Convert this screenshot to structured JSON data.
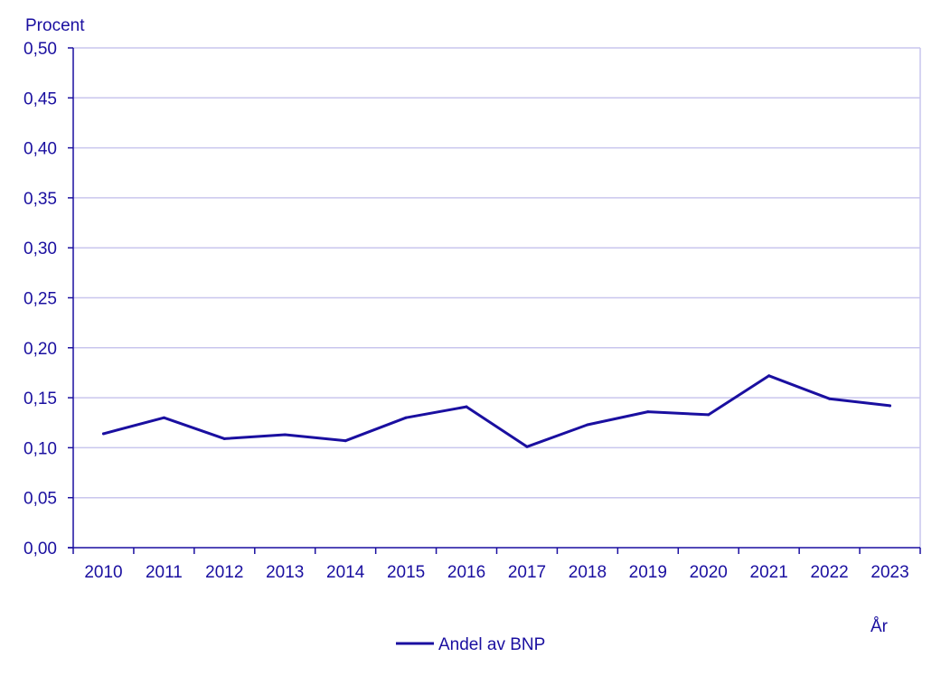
{
  "chart_data": {
    "type": "line",
    "title": "",
    "ylabel": "Procent",
    "xlabel": "År",
    "categories": [
      "2010",
      "2011",
      "2012",
      "2013",
      "2014",
      "2015",
      "2016",
      "2017",
      "2018",
      "2019",
      "2020",
      "2021",
      "2022",
      "2023"
    ],
    "series": [
      {
        "name": "Andel av BNP",
        "values": [
          0.114,
          0.13,
          0.109,
          0.113,
          0.107,
          0.13,
          0.141,
          0.101,
          0.123,
          0.136,
          0.133,
          0.172,
          0.149,
          0.142
        ]
      }
    ],
    "ylim": [
      0,
      0.5
    ],
    "yticks": [
      0,
      0.05,
      0.1,
      0.15,
      0.2,
      0.25,
      0.3,
      0.35,
      0.4,
      0.45,
      0.5
    ],
    "ytick_labels": [
      "0,00",
      "0,05",
      "0,10",
      "0,15",
      "0,20",
      "0,25",
      "0,30",
      "0,35",
      "0,40",
      "0,45",
      "0,50"
    ],
    "grid": true,
    "legend_position": "bottom-center",
    "colors": {
      "line": "#1a0fa0",
      "text": "#1a0fa0",
      "grid": "#c9c6ee",
      "axis": "#1a0fa0"
    }
  }
}
